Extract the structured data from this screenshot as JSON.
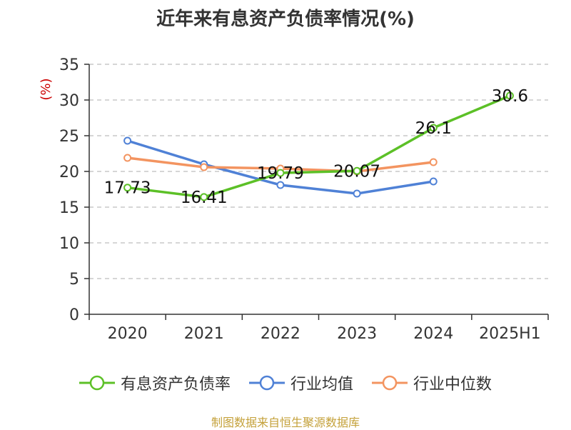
{
  "chart_data": {
    "type": "line",
    "title": "近年来有息资产负债率情况(%)",
    "ylabel": "(%)",
    "xlabel": "",
    "categories": [
      "2020",
      "2021",
      "2022",
      "2023",
      "2024",
      "2025H1"
    ],
    "ylim": [
      0,
      35
    ],
    "yticks": [
      0,
      5,
      10,
      15,
      20,
      25,
      30,
      35
    ],
    "grid": true,
    "legend_position": "bottom",
    "series": [
      {
        "name": "有息资产负债率",
        "color": "#5cc027",
        "values": [
          17.73,
          16.41,
          19.79,
          20.07,
          26.1,
          30.6
        ],
        "labels": [
          "17.73",
          "16.41",
          "19.79",
          "20.07",
          "26.1",
          "30.6"
        ]
      },
      {
        "name": "行业均值",
        "color": "#4f81d6",
        "values": [
          24.3,
          21.0,
          18.1,
          16.9,
          18.6,
          null
        ]
      },
      {
        "name": "行业中位数",
        "color": "#f39460",
        "values": [
          21.9,
          20.6,
          20.4,
          20.0,
          21.3,
          null
        ]
      }
    ]
  },
  "source_note": "制图数据来自恒生聚源数据库"
}
